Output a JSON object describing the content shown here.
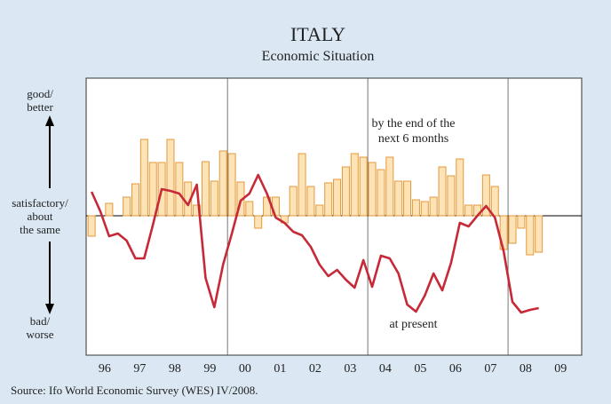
{
  "chart_data": {
    "type": "bar_line",
    "title": "ITALY",
    "subtitle": "Economic Situation",
    "source": "Source: Ifo World Economic Survey (WES) IV/2008.",
    "annotations": [
      {
        "text": "by the end of the\nnext 6 months",
        "x": 2005.3,
        "y": 95
      },
      {
        "text": "at present",
        "x": 2005.3,
        "y": -122
      }
    ],
    "x": [
      1996.125,
      1996.375,
      1996.625,
      1996.875,
      1997.125,
      1997.375,
      1997.625,
      1997.875,
      1998.125,
      1998.375,
      1998.625,
      1998.875,
      1999.125,
      1999.375,
      1999.625,
      1999.875,
      2000.125,
      2000.375,
      2000.625,
      2000.875,
      2001.125,
      2001.375,
      2001.625,
      2001.875,
      2002.125,
      2002.375,
      2002.625,
      2002.875,
      2003.125,
      2003.375,
      2003.625,
      2003.875,
      2004.125,
      2004.375,
      2004.625,
      2004.875,
      2005.125,
      2005.375,
      2005.625,
      2005.875,
      2006.125,
      2006.375,
      2006.625,
      2006.875,
      2007.125,
      2007.375,
      2007.625,
      2007.875,
      2008.125,
      2008.375,
      2008.625,
      2008.875
    ],
    "series": [
      {
        "type": "bar",
        "color": "#fde3b6",
        "edge": "#e29a3c",
        "values": [
          -23,
          0,
          14,
          0,
          21,
          36,
          86,
          60,
          60,
          86,
          60,
          38,
          12,
          61,
          39,
          73,
          70,
          38,
          16,
          -14,
          21,
          21,
          -8,
          33,
          70,
          33,
          12,
          37,
          41,
          55,
          70,
          66,
          60,
          52,
          66,
          39,
          39,
          18,
          16,
          21,
          55,
          45,
          64,
          12,
          12,
          46,
          33,
          -38,
          -31,
          -14,
          -44,
          -41
        ]
      },
      {
        "type": "line",
        "color": "#c62a38",
        "values": [
          27,
          5,
          -23,
          -20,
          -28,
          -48,
          -48,
          -10,
          30,
          28,
          25,
          12,
          35,
          -70,
          -103,
          -55,
          -20,
          17,
          25,
          46,
          25,
          -2,
          -8,
          -18,
          -22,
          -35,
          -55,
          -68,
          -61,
          -72,
          -81,
          -50,
          -80,
          -45,
          -48,
          -65,
          -100,
          -108,
          -90,
          -65,
          -84,
          -53,
          -8,
          -12,
          0,
          11,
          -2,
          -40,
          -97,
          -109,
          -106,
          -104
        ]
      }
    ],
    "xlim": [
      1995.97,
      2010.1
    ],
    "xticks": [
      {
        "value": 1996.5,
        "label": "96"
      },
      {
        "value": 1997.5,
        "label": "97"
      },
      {
        "value": 1998.5,
        "label": "98"
      },
      {
        "value": 1999.5,
        "label": "99"
      },
      {
        "value": 2000.5,
        "label": "00"
      },
      {
        "value": 2001.5,
        "label": "01"
      },
      {
        "value": 2002.5,
        "label": "02"
      },
      {
        "value": 2003.5,
        "label": "03"
      },
      {
        "value": 2004.5,
        "label": "04"
      },
      {
        "value": 2005.5,
        "label": "05"
      },
      {
        "value": 2006.5,
        "label": "06"
      },
      {
        "value": 2007.5,
        "label": "07"
      },
      {
        "value": 2008.5,
        "label": "08"
      },
      {
        "value": 2009.5,
        "label": "09"
      }
    ],
    "xgrid": [
      2000,
      2004,
      2008
    ],
    "ylim": [
      -157,
      155
    ],
    "yticks": [
      {
        "value": 130,
        "label": "good/\nbetter"
      },
      {
        "value": 0,
        "label": "satisfactory/\nabout\nthe same"
      },
      {
        "value": -126,
        "label": "bad/\nworse"
      }
    ]
  }
}
